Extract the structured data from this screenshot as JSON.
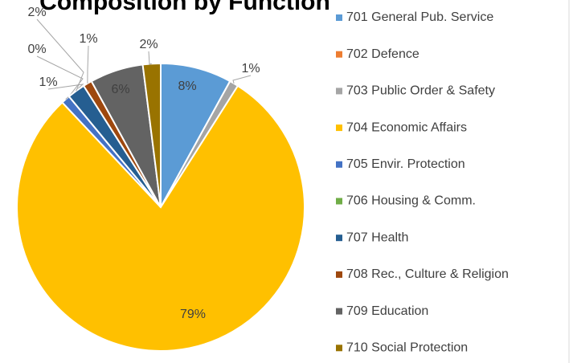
{
  "chart_data": {
    "type": "pie",
    "title": "Composition by Function",
    "categories": [
      "701 General Pub. Service",
      "702 Defence",
      "703 Public Order & Safety",
      "704 Economic Affairs",
      "705 Envir. Protection",
      "706 Housing & Comm.",
      "707 Health",
      "708 Rec., Culture & Religion",
      "709 Education",
      "710 Social Protection"
    ],
    "values": [
      8,
      0,
      1,
      79,
      1,
      0,
      2,
      1,
      6,
      2
    ],
    "value_labels": [
      "8%",
      null,
      "1%",
      "79%",
      "1%",
      "0%",
      "2%",
      "1%",
      "6%",
      "2%"
    ],
    "colors": [
      "#5b9bd5",
      "#ed7d31",
      "#a5a5a5",
      "#ffc000",
      "#4472c4",
      "#70ad47",
      "#255e91",
      "#9e480e",
      "#636363",
      "#997300"
    ],
    "legend": "right"
  }
}
